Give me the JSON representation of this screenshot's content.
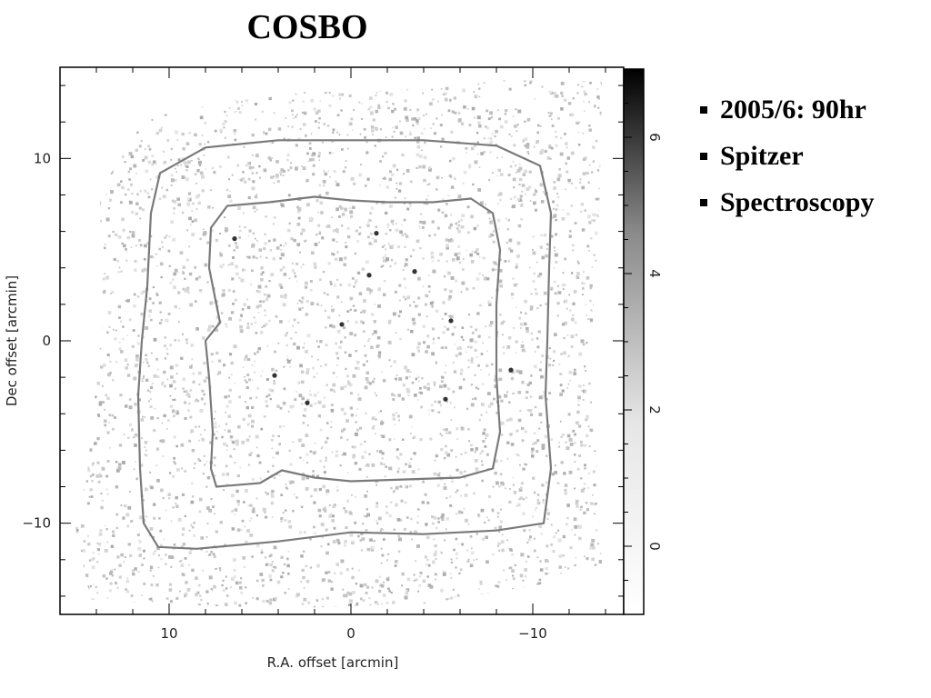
{
  "slide": {
    "title": "COSBO",
    "bullets": [
      "2005/6: 90hr",
      "Spitzer",
      "Spectroscopy"
    ]
  },
  "chart_data": {
    "type": "heatmap",
    "title": "",
    "xlabel": "R.A. offset [arcmin]",
    "ylabel": "Dec offset [arcmin]",
    "xlim": [
      16,
      -15
    ],
    "ylim": [
      -15,
      15
    ],
    "x_ticks": [
      10,
      0,
      -10
    ],
    "x_tick_labels": [
      "10",
      "0",
      "−10"
    ],
    "y_ticks": [
      10,
      0,
      -10
    ],
    "y_tick_labels": [
      "10",
      "0",
      "−10"
    ],
    "colorbar": {
      "range": [
        -1,
        7
      ],
      "ticks": [
        0,
        2,
        4,
        6
      ],
      "tick_labels": [
        "0",
        "2",
        "4",
        "6"
      ],
      "colormap": "grayscale",
      "low_color": "#ffffff",
      "high_color": "#000000"
    },
    "grid": false,
    "noise_color": "#c8c8c8",
    "contour_color": "#7a7a7a",
    "contours": [
      {
        "label": "outer",
        "points": [
          [
            8.5,
            -11.4
          ],
          [
            4,
            -11
          ],
          [
            0,
            -10.5
          ],
          [
            -4,
            -10.6
          ],
          [
            -8,
            -10.4
          ],
          [
            -10.6,
            -10
          ],
          [
            -11,
            -7
          ],
          [
            -10.7,
            -3
          ],
          [
            -10.8,
            0
          ],
          [
            -10.9,
            4
          ],
          [
            -11,
            7
          ],
          [
            -10.4,
            9.6
          ],
          [
            -8,
            10.7
          ],
          [
            -4,
            11
          ],
          [
            0,
            11
          ],
          [
            4,
            11
          ],
          [
            8,
            10.6
          ],
          [
            10.5,
            9.2
          ],
          [
            11,
            7
          ],
          [
            11.2,
            3
          ],
          [
            11.5,
            0
          ],
          [
            11.7,
            -3
          ],
          [
            11.6,
            -7
          ],
          [
            11.4,
            -10
          ],
          [
            10.6,
            -11.3
          ]
        ]
      },
      {
        "label": "inner",
        "points": [
          [
            7.4,
            -8
          ],
          [
            5,
            -7.8
          ],
          [
            3.8,
            -7.1
          ],
          [
            2,
            -7.5
          ],
          [
            0,
            -7.7
          ],
          [
            -3,
            -7.6
          ],
          [
            -6,
            -7.5
          ],
          [
            -7.8,
            -7
          ],
          [
            -8.2,
            -5
          ],
          [
            -8,
            -2
          ],
          [
            -8,
            2
          ],
          [
            -8.2,
            5
          ],
          [
            -7.8,
            7
          ],
          [
            -6.6,
            7.8
          ],
          [
            -4.5,
            7.6
          ],
          [
            -2,
            7.6
          ],
          [
            0,
            7.7
          ],
          [
            2,
            7.9
          ],
          [
            4.5,
            7.6
          ],
          [
            6.8,
            7.4
          ],
          [
            7.7,
            6.2
          ],
          [
            7.8,
            4
          ],
          [
            7.2,
            1
          ],
          [
            8,
            0
          ],
          [
            7.8,
            -2
          ],
          [
            7.6,
            -5
          ],
          [
            7.7,
            -7
          ]
        ]
      }
    ],
    "bright_sources": [
      [
        -3.5,
        3.8
      ],
      [
        -1.4,
        5.9
      ],
      [
        -5.5,
        1.1
      ],
      [
        0.5,
        0.9
      ],
      [
        2.4,
        -3.4
      ],
      [
        6.4,
        5.6
      ],
      [
        -5.2,
        -3.2
      ],
      [
        -8.8,
        -1.6
      ],
      [
        -1.0,
        3.6
      ],
      [
        4.2,
        -1.9
      ]
    ]
  }
}
